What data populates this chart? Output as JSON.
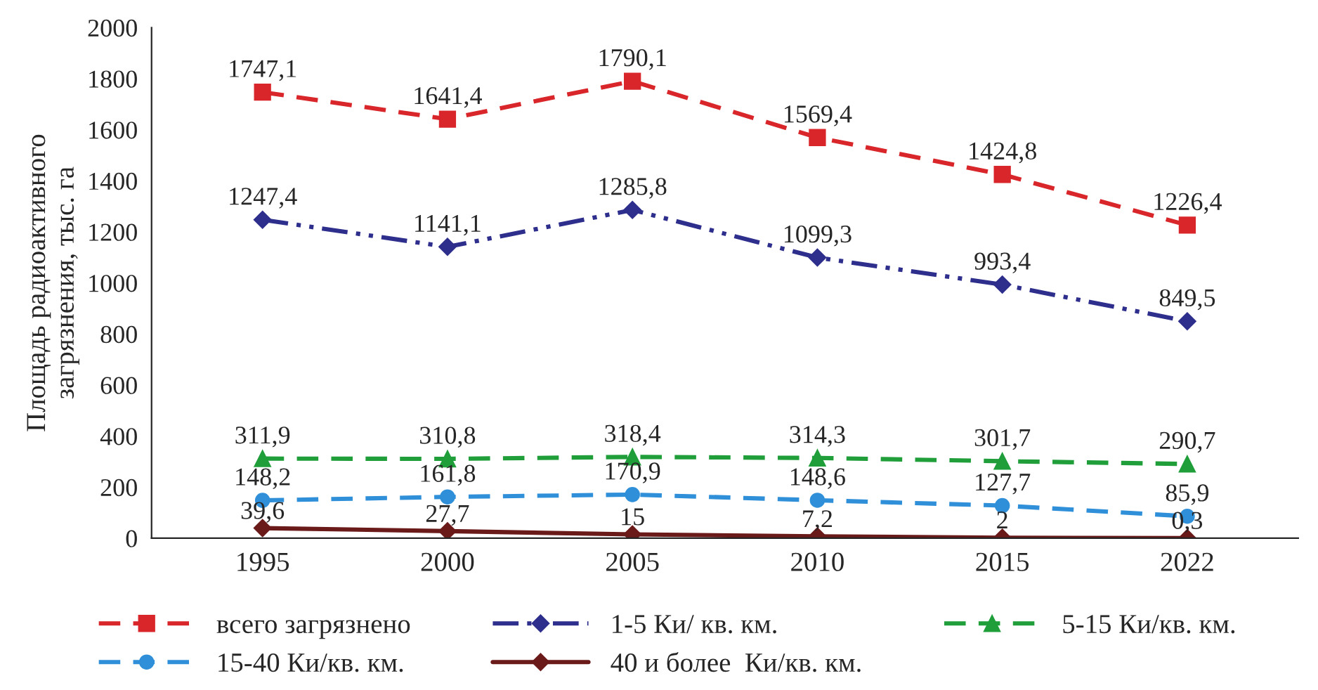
{
  "chart_data": {
    "type": "line",
    "ylabel": "Площадь радиоактивного\nзагрязнения, тыс. га",
    "categories": [
      "1995",
      "2000",
      "2005",
      "2010",
      "2015",
      "2022"
    ],
    "series": [
      {
        "name": "всего загрязнено",
        "color": "#d9262a",
        "marker": "square",
        "line_style": "dashed",
        "values": [
          1747.1,
          1641.4,
          1790.1,
          1569.4,
          1424.8,
          1226.4
        ],
        "value_labels": [
          "1747,1",
          "1641,4",
          "1790,1",
          "1569,4",
          "1424,8",
          "1226,4"
        ]
      },
      {
        "name": "1-5 Ки/ кв. км.",
        "color": "#2e2e8c",
        "marker": "diamond",
        "line_style": "dotted",
        "values": [
          1247.4,
          1141.1,
          1285.8,
          1099.3,
          993.4,
          849.5
        ],
        "value_labels": [
          "1247,4",
          "1141,1",
          "1285,8",
          "1099,3",
          "993,4",
          "849,5"
        ]
      },
      {
        "name": "5-15 Ки/кв. км.",
        "color": "#1f9e3a",
        "marker": "triangle",
        "line_style": "dashed",
        "values": [
          311.9,
          310.8,
          318.4,
          314.3,
          301.7,
          290.7
        ],
        "value_labels": [
          "311,9",
          "310,8",
          "318,4",
          "314,3",
          "301,7",
          "290,7"
        ]
      },
      {
        "name": "15-40 Ки/кв. км.",
        "color": "#2f8fd8",
        "marker": "circle",
        "line_style": "dashed",
        "values": [
          148.2,
          161.8,
          170.9,
          148.6,
          127.7,
          85.9
        ],
        "value_labels": [
          "148,2",
          "161,8",
          "170,9",
          "148,6",
          "127,7",
          "85,9"
        ]
      },
      {
        "name": "40 и более  Ки/кв. км.",
        "color": "#6b1a1a",
        "marker": "diamond",
        "line_style": "solid",
        "values": [
          39.6,
          27.7,
          15,
          7.2,
          2,
          0.3
        ],
        "value_labels": [
          "39,6",
          "27,7",
          "15",
          "7,2",
          "2",
          "0,3"
        ]
      }
    ],
    "ylim": [
      0,
      2000
    ],
    "yticks": [
      0,
      200,
      400,
      600,
      800,
      1000,
      1200,
      1400,
      1600,
      1800,
      2000
    ],
    "legend": "bottom",
    "grid": false
  }
}
